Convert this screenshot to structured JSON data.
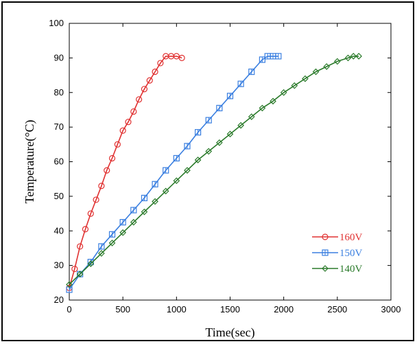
{
  "chart_data": {
    "type": "line",
    "xlabel": "Time(sec)",
    "ylabel": "Temperature(°C)",
    "xlim": [
      0,
      3000
    ],
    "ylim": [
      20,
      100
    ],
    "xticks": [
      0,
      500,
      1000,
      1500,
      2000,
      2500,
      3000
    ],
    "yticks": [
      20,
      30,
      40,
      50,
      60,
      70,
      80,
      90,
      100
    ],
    "grid": false,
    "legend_position": "lower-right",
    "series": [
      {
        "name": "160V",
        "color": "#e03030",
        "marker": "circle",
        "x": [
          0,
          50,
          100,
          150,
          200,
          250,
          300,
          350,
          400,
          450,
          500,
          550,
          600,
          650,
          700,
          750,
          800,
          850,
          900,
          950,
          1000,
          1050
        ],
        "y": [
          23.5,
          29,
          35.5,
          40.5,
          45,
          49,
          53,
          57.5,
          61,
          65,
          69,
          71.5,
          74.5,
          78,
          81,
          83.5,
          86,
          88.5,
          90.5,
          90.5,
          90.5,
          90
        ]
      },
      {
        "name": "150V",
        "color": "#3a7fe0",
        "marker": "square-cross",
        "x": [
          0,
          100,
          200,
          300,
          400,
          500,
          600,
          700,
          800,
          900,
          1000,
          1100,
          1200,
          1300,
          1400,
          1500,
          1600,
          1700,
          1800,
          1850,
          1900,
          1950
        ],
        "y": [
          23,
          27.5,
          31,
          35.5,
          39,
          42.5,
          46,
          49.5,
          53.5,
          57.5,
          61,
          64.5,
          68.5,
          72,
          75.5,
          79,
          82.5,
          86,
          89.5,
          90.5,
          90.5,
          90.5
        ]
      },
      {
        "name": "140V",
        "color": "#2a7a2a",
        "marker": "diamond",
        "x": [
          0,
          100,
          200,
          300,
          400,
          500,
          600,
          700,
          800,
          900,
          1000,
          1100,
          1200,
          1300,
          1400,
          1500,
          1600,
          1700,
          1800,
          1900,
          2000,
          2100,
          2200,
          2300,
          2400,
          2500,
          2600,
          2650,
          2700
        ],
        "y": [
          24.5,
          27.5,
          30.5,
          33.5,
          36.5,
          39.5,
          42.5,
          45.5,
          48.5,
          51.5,
          54.5,
          57.5,
          60.5,
          63,
          65.5,
          68,
          70.5,
          73,
          75.5,
          77.5,
          80,
          82,
          84,
          86,
          87.5,
          89,
          90,
          90.5,
          90.5
        ]
      }
    ]
  }
}
